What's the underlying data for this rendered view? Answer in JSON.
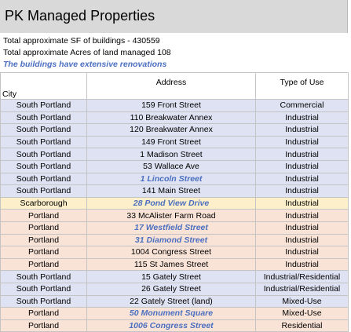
{
  "header": {
    "title": "PK Managed Properties"
  },
  "summary": [
    "Total approximate SF of buildings - 430559",
    "Total approximate Acres of land managed 108",
    "The buildings have extensive renovations"
  ],
  "table": {
    "columns": [
      "City",
      "Address",
      "Type of Use"
    ],
    "rows": [
      [
        "South Portland",
        "159 Front Street",
        "Commercial"
      ],
      [
        "South Portland",
        "110 Breakwater Annex",
        "Industrial"
      ],
      [
        "South Portland",
        "120 Breakwater Annex",
        "Industrial"
      ],
      [
        "South Portland",
        "149 Front Street",
        "Industrial"
      ],
      [
        "South Portland",
        "1 Madison Street",
        "Industrial"
      ],
      [
        "South Portland",
        "53 Wallace Ave",
        "Industrial"
      ],
      [
        "South Portland",
        "1 Lincoln Street",
        "Industrial"
      ],
      [
        "South Portland",
        "141 Main Street",
        "Industrial"
      ],
      [
        "Scarborough",
        "28 Pond View Drive",
        "Industrial"
      ],
      [
        "Portland",
        "33 McAlister Farm Road",
        "Industrial"
      ],
      [
        "Portland",
        "17 Westfield Street",
        "Industrial"
      ],
      [
        "Portland",
        "31 Diamond Street",
        "Industrial"
      ],
      [
        "Portland",
        "1004 Congress Street",
        "Industrial"
      ],
      [
        "Portland",
        "115 St James Street",
        "Industrial"
      ],
      [
        "South Portland",
        "15 Gately Street",
        "Industrial/Residential"
      ],
      [
        "South Portland",
        "26 Gately  Street",
        "Industrial/Residential"
      ],
      [
        "South Portland",
        "22 Gately Street (land)",
        "Mixed-Use"
      ],
      [
        "Portland",
        "50 Monument Square",
        "Mixed-Use"
      ],
      [
        "Portland",
        "1006 Congress Street",
        "Residential"
      ]
    ]
  }
}
